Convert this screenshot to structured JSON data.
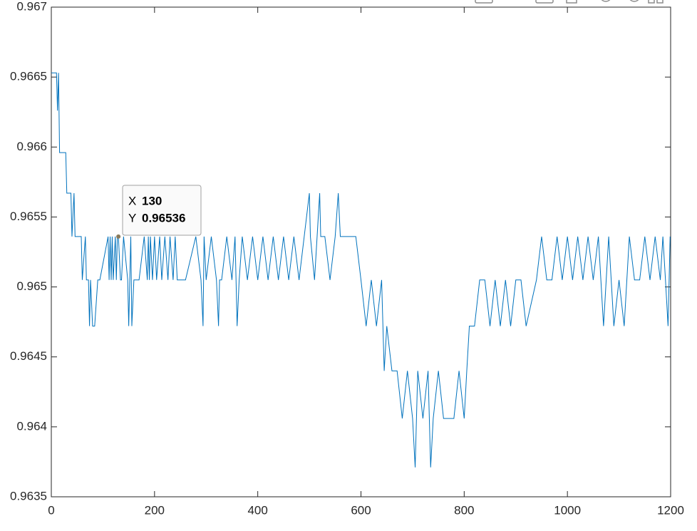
{
  "chart_data": {
    "type": "line",
    "color": "#0072bd",
    "xlim": [
      0,
      1200
    ],
    "xticks": [
      0,
      200,
      400,
      600,
      800,
      1000,
      1200
    ],
    "ylim": [
      0.9635,
      0.967
    ],
    "yticks": [
      0.9635,
      0.964,
      0.9645,
      0.965,
      0.9655,
      0.966,
      0.9665,
      0.967
    ],
    "grid": false,
    "x": [
      0,
      10,
      12,
      14,
      16,
      28,
      30,
      38,
      40,
      44,
      46,
      58,
      60,
      66,
      68,
      72,
      74,
      76,
      80,
      84,
      90,
      94,
      110,
      112,
      114,
      116,
      118,
      120,
      124,
      126,
      128,
      130,
      134,
      136,
      140,
      148,
      150,
      152,
      154,
      156,
      160,
      170,
      180,
      186,
      188,
      190,
      192,
      196,
      200,
      204,
      210,
      214,
      220,
      226,
      230,
      236,
      240,
      244,
      250,
      260,
      280,
      290,
      294,
      296,
      300,
      310,
      320,
      324,
      326,
      330,
      340,
      350,
      356,
      360,
      364,
      370,
      380,
      390,
      400,
      410,
      420,
      430,
      440,
      450,
      460,
      470,
      480,
      490,
      500,
      502,
      510,
      520,
      522,
      530,
      540,
      550,
      556,
      560,
      570,
      590,
      600,
      610,
      620,
      630,
      640,
      645,
      650,
      660,
      670,
      680,
      690,
      700,
      705,
      710,
      720,
      730,
      735,
      740,
      750,
      760,
      770,
      780,
      790,
      800,
      805,
      810,
      820,
      830,
      840,
      850,
      860,
      870,
      880,
      890,
      900,
      910,
      920,
      940,
      950,
      960,
      970,
      980,
      990,
      1000,
      1010,
      1020,
      1030,
      1040,
      1050,
      1060,
      1070,
      1080,
      1090,
      1100,
      1110,
      1120,
      1130,
      1140,
      1150,
      1160,
      1170,
      1180,
      1185,
      1190,
      1195,
      1199
    ],
    "values": [
      0.96653,
      0.96653,
      0.96626,
      0.96653,
      0.96596,
      0.96596,
      0.96567,
      0.96567,
      0.96536,
      0.96567,
      0.96536,
      0.96536,
      0.96505,
      0.96536,
      0.96505,
      0.96505,
      0.96472,
      0.96505,
      0.96472,
      0.96472,
      0.96505,
      0.96505,
      0.96536,
      0.96505,
      0.96536,
      0.96505,
      0.96536,
      0.96505,
      0.96536,
      0.96505,
      0.96536,
      0.96536,
      0.96505,
      0.96505,
      0.96536,
      0.96505,
      0.96472,
      0.96505,
      0.96536,
      0.96472,
      0.96505,
      0.96505,
      0.96536,
      0.96505,
      0.96536,
      0.96505,
      0.96536,
      0.96505,
      0.96536,
      0.96505,
      0.96536,
      0.96505,
      0.96536,
      0.96505,
      0.96536,
      0.96505,
      0.96536,
      0.96505,
      0.96505,
      0.96505,
      0.96536,
      0.96505,
      0.96472,
      0.96536,
      0.96505,
      0.96536,
      0.96505,
      0.96472,
      0.96505,
      0.96505,
      0.96536,
      0.96505,
      0.96536,
      0.96472,
      0.96505,
      0.96536,
      0.96505,
      0.96536,
      0.96505,
      0.96536,
      0.96505,
      0.96536,
      0.96505,
      0.96536,
      0.96505,
      0.96536,
      0.96505,
      0.96536,
      0.96567,
      0.96536,
      0.96505,
      0.96567,
      0.96536,
      0.96536,
      0.96505,
      0.96536,
      0.96567,
      0.96536,
      0.96536,
      0.96536,
      0.96505,
      0.96472,
      0.96505,
      0.96472,
      0.96505,
      0.9644,
      0.96472,
      0.9644,
      0.9644,
      0.96406,
      0.9644,
      0.96406,
      0.96371,
      0.9644,
      0.96406,
      0.9644,
      0.96371,
      0.96406,
      0.9644,
      0.96406,
      0.96406,
      0.96406,
      0.9644,
      0.96406,
      0.9644,
      0.96472,
      0.96472,
      0.96505,
      0.96505,
      0.96472,
      0.96505,
      0.96472,
      0.96505,
      0.96472,
      0.96505,
      0.96505,
      0.96472,
      0.96505,
      0.96536,
      0.96505,
      0.96505,
      0.96536,
      0.96505,
      0.96536,
      0.96505,
      0.96536,
      0.96505,
      0.96536,
      0.96505,
      0.96536,
      0.96472,
      0.96536,
      0.96472,
      0.96505,
      0.96472,
      0.96536,
      0.96505,
      0.96505,
      0.96536,
      0.96505,
      0.96536,
      0.96505,
      0.96536,
      0.96505,
      0.96472,
      0.96536
    ],
    "datatip": {
      "x_label": "X",
      "x": 130,
      "y_label": "Y",
      "y": 0.96536
    }
  }
}
